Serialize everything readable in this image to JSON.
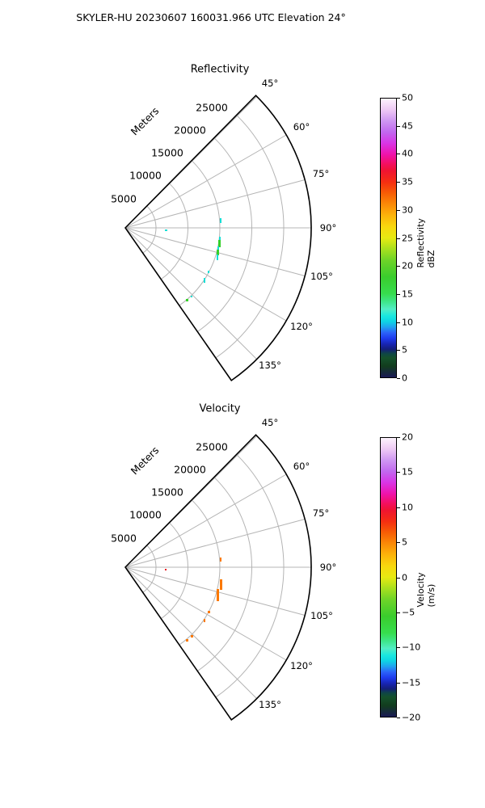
{
  "page_title": "SKYLER-HU  20230607  160031.966 UTC Elevation 24°",
  "palette": {
    "cyan": "#16dfd6",
    "green": "#35d02a",
    "orange": "#fb7900",
    "red": "#e8131f",
    "grid_gray": "#b4b4b4",
    "outline_black": "#000000"
  },
  "colorbar_gradient": [
    [
      "0%",
      "#191954"
    ],
    [
      "4%",
      "#123d1e"
    ],
    [
      "7%",
      "#14512b"
    ],
    [
      "8.5%",
      "#0f4646"
    ],
    [
      "10%",
      "#141e78"
    ],
    [
      "12%",
      "#1825b5"
    ],
    [
      "14%",
      "#1f3cee"
    ],
    [
      "16%",
      "#2b62f8"
    ],
    [
      "18%",
      "#20a2f0"
    ],
    [
      "20%",
      "#0fd4e4"
    ],
    [
      "22%",
      "#19e8e0"
    ],
    [
      "24.5%",
      "#52eec4"
    ],
    [
      "27%",
      "#3fe68c"
    ],
    [
      "30%",
      "#37dd4e"
    ],
    [
      "36%",
      "#3acc2d"
    ],
    [
      "42%",
      "#6ed428"
    ],
    [
      "46%",
      "#a7e01e"
    ],
    [
      "50%",
      "#e7ea12"
    ],
    [
      "54%",
      "#f8d80e"
    ],
    [
      "58%",
      "#fcb40a"
    ],
    [
      "62%",
      "#fb8b07"
    ],
    [
      "66%",
      "#f75e05"
    ],
    [
      "70%",
      "#f52f11"
    ],
    [
      "74%",
      "#ef1430"
    ],
    [
      "76.5%",
      "#f30f5f"
    ],
    [
      "80%",
      "#ee13ac"
    ],
    [
      "84%",
      "#d935e6"
    ],
    [
      "88%",
      "#c168ef"
    ],
    [
      "92%",
      "#cf97f2"
    ],
    [
      "96%",
      "#eec9f4"
    ],
    [
      "100%",
      "#fdf2fd"
    ]
  ],
  "plots": [
    {
      "title": "Reflectivity",
      "radial_axis_label": "Meters",
      "angle_labels": [
        "45°",
        "60°",
        "75°",
        "90°",
        "105°",
        "120°",
        "135°"
      ],
      "radial_labels": [
        "5000",
        "10000",
        "15000",
        "20000",
        "25000"
      ],
      "colorbar": {
        "label": "Reflectivity dBZ",
        "ticks": [
          "50",
          "45",
          "40",
          "35",
          "30",
          "25",
          "20",
          "15",
          "10",
          "5",
          "0"
        ]
      }
    },
    {
      "title": "Velocity",
      "radial_axis_label": "Meters",
      "angle_labels": [
        "45°",
        "60°",
        "75°",
        "90°",
        "105°",
        "120°",
        "135°"
      ],
      "radial_labels": [
        "5000",
        "10000",
        "15000",
        "20000",
        "25000"
      ],
      "colorbar": {
        "label": "Velocity (m/s)",
        "ticks": [
          "20",
          "15",
          "10",
          "5",
          "0",
          "−5",
          "−10",
          "−15",
          "−20"
        ]
      }
    }
  ],
  "chart_data": [
    {
      "type": "heatmap",
      "subtype": "radar_ppi_sector",
      "title": "Reflectivity",
      "units": "dBZ",
      "azimuth_ticks_deg": [
        45,
        60,
        75,
        90,
        105,
        120,
        135
      ],
      "range_ticks_m": [
        5000,
        10000,
        15000,
        20000,
        25000
      ],
      "range_max_m": 29500,
      "sector_span_deg": [
        44.6,
        145.2
      ],
      "colorbar": {
        "label": "Reflectivity dBZ",
        "min": 0,
        "max": 50,
        "tick_step": 5
      },
      "points": [
        {
          "azimuth_deg": 85,
          "range_m": 15000,
          "value": 10,
          "color": "cyan",
          "px": [
            272,
            270,
            2,
            6
          ]
        },
        {
          "azimuth_deg": 92,
          "range_m": 6300,
          "value": 10,
          "color": "cyan",
          "px": [
            204,
            284,
            3,
            2
          ]
        },
        {
          "azimuth_deg": 96,
          "range_m": 15000,
          "value": 10,
          "color": "cyan",
          "px": [
            271,
            293,
            2,
            4
          ]
        },
        {
          "azimuth_deg": 98,
          "range_m": 15100,
          "value": 19,
          "color": "green",
          "px": [
            270,
            297,
            3,
            9
          ]
        },
        {
          "azimuth_deg": 101,
          "range_m": 15000,
          "value": 11,
          "color": "cyan",
          "px": [
            269,
            305,
            2,
            5
          ]
        },
        {
          "azimuth_deg": 103,
          "range_m": 14900,
          "value": 18,
          "color": "green",
          "px": [
            268,
            309,
            3,
            7
          ]
        },
        {
          "azimuth_deg": 105,
          "range_m": 14800,
          "value": 10,
          "color": "cyan",
          "px": [
            268,
            315,
            2,
            7
          ]
        },
        {
          "azimuth_deg": 118,
          "range_m": 14700,
          "value": 10,
          "color": "cyan",
          "px": [
            257,
            335,
            2,
            3
          ]
        },
        {
          "azimuth_deg": 123,
          "range_m": 14800,
          "value": 10,
          "color": "cyan",
          "px": [
            252,
            344,
            2,
            6
          ]
        },
        {
          "azimuth_deg": 136,
          "range_m": 14900,
          "value": 10,
          "color": "cyan",
          "px": [
            236,
            366,
            2,
            2
          ]
        },
        {
          "azimuth_deg": 140,
          "range_m": 14900,
          "value": 18,
          "color": "green",
          "px": [
            230,
            370,
            3,
            3
          ]
        }
      ]
    },
    {
      "type": "heatmap",
      "subtype": "radar_ppi_sector",
      "title": "Velocity",
      "units": "m/s",
      "azimuth_ticks_deg": [
        45,
        60,
        75,
        90,
        105,
        120,
        135
      ],
      "range_ticks_m": [
        5000,
        10000,
        15000,
        20000,
        25000
      ],
      "range_max_m": 29500,
      "sector_span_deg": [
        44.6,
        145.2
      ],
      "colorbar": {
        "label": "Velocity (m/s)",
        "min": -20,
        "max": 20,
        "tick_step": 5
      },
      "points": [
        {
          "azimuth_deg": 85,
          "range_m": 15000,
          "value": 6,
          "color": "orange",
          "px": [
            272,
            690,
            2,
            5
          ]
        },
        {
          "azimuth_deg": 92,
          "range_m": 6300,
          "value": 10,
          "color": "red",
          "px": [
            204,
            704,
            2,
            2
          ]
        },
        {
          "azimuth_deg": 98,
          "range_m": 15100,
          "value": 6,
          "color": "orange",
          "px": [
            272,
            717,
            3,
            13
          ]
        },
        {
          "azimuth_deg": 103,
          "range_m": 14900,
          "value": 6,
          "color": "orange",
          "px": [
            268,
            729,
            3,
            15
          ]
        },
        {
          "azimuth_deg": 118,
          "range_m": 14700,
          "value": 6,
          "color": "orange",
          "px": [
            257,
            756,
            3,
            3
          ]
        },
        {
          "azimuth_deg": 123,
          "range_m": 14800,
          "value": 6,
          "color": "orange",
          "px": [
            252,
            766,
            2,
            4
          ]
        },
        {
          "azimuth_deg": 136,
          "range_m": 14900,
          "value": 6,
          "color": "orange",
          "px": [
            236,
            786,
            3,
            3
          ]
        },
        {
          "azimuth_deg": 140,
          "range_m": 14900,
          "value": 6,
          "color": "orange",
          "px": [
            230,
            791,
            3,
            3
          ]
        }
      ]
    }
  ]
}
